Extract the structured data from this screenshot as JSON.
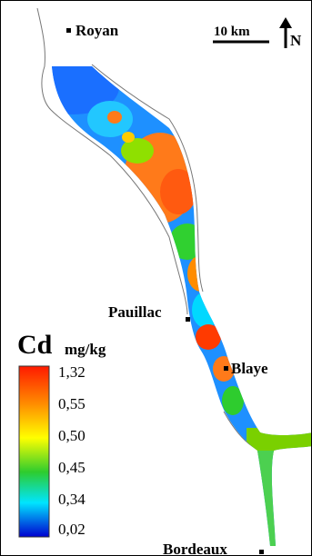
{
  "map": {
    "cities": [
      {
        "name": "Royan"
      },
      {
        "name": "Pauillac"
      },
      {
        "name": "Blaye"
      },
      {
        "name": "Bordeaux"
      }
    ],
    "scale_bar": {
      "label": "10 km"
    },
    "north_arrow": {
      "label": "N"
    },
    "legend": {
      "variable": "Cd",
      "unit": "mg/kg",
      "ticks": [
        "1,32",
        "0,55",
        "0,50",
        "0,45",
        "0,34",
        "0,02"
      ],
      "colors": [
        "#ff1a00",
        "#ff8c00",
        "#ffff00",
        "#2ecc2e",
        "#00e5ff",
        "#0000d0"
      ]
    }
  }
}
